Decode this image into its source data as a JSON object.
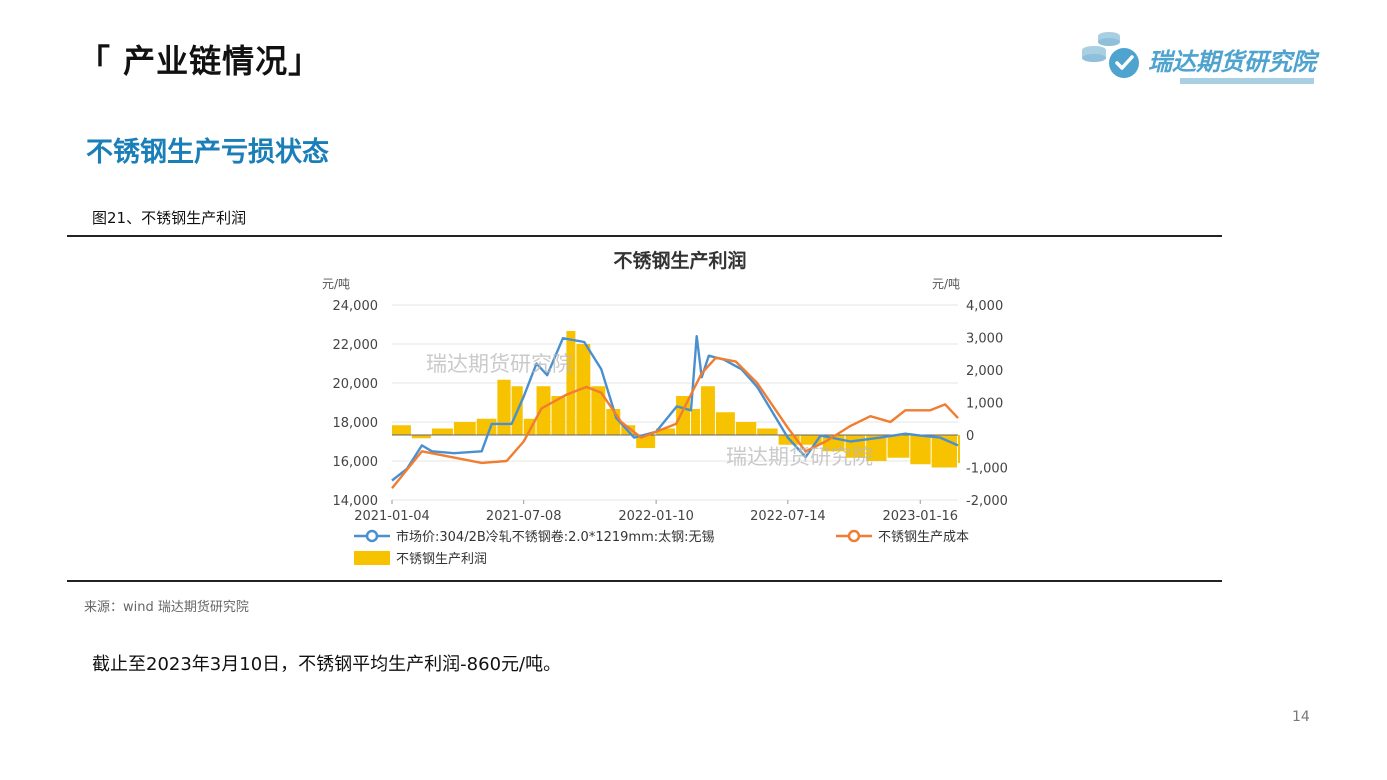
{
  "header": {
    "section_title": "「 产业链情况」"
  },
  "logo": {
    "text": "瑞达期货研究院",
    "color": "#4fa3cf",
    "bar_color": "#a9cfe3"
  },
  "subtitle": "不锈钢生产亏损状态",
  "subtitle_color": "#1a7fb8",
  "figure_caption": "图21、不锈钢生产利润",
  "source_note": "来源：wind   瑞达期货研究院",
  "summary": "截止至2023年3月10日，不锈钢平均生产利润-860元/吨。",
  "page_number": "14",
  "chart_data": {
    "type": "line",
    "title": "不锈钢生产利润",
    "y_left_label": "元/吨",
    "y_right_label": "元/吨",
    "y_left_range": [
      14000,
      24000
    ],
    "y_right_range": [
      -2000,
      4000
    ],
    "y_left_ticks": [
      "24,000",
      "22,000",
      "20,000",
      "18,000",
      "16,000",
      "14,000"
    ],
    "y_right_ticks": [
      "4,000",
      "3,000",
      "2,000",
      "1,000",
      "0",
      "-1,000",
      "-2,000"
    ],
    "x_ticks": [
      "2021-01-04",
      "2021-07-08",
      "2022-01-10",
      "2022-07-14",
      "2023-01-16"
    ],
    "watermark": "瑞达期货研究院",
    "grid": true,
    "legend_position": "bottom",
    "series": [
      {
        "name": "市场价:304/2B冷轧不锈钢卷:2.0*1219mm:太钢:无锡",
        "axis": "left",
        "kind": "line",
        "color": "#4a90d0",
        "points": [
          [
            "2021-01-04",
            15000
          ],
          [
            "2021-01-25",
            15600
          ],
          [
            "2021-02-15",
            16800
          ],
          [
            "2021-03-01",
            16500
          ],
          [
            "2021-04-01",
            16400
          ],
          [
            "2021-05-10",
            16500
          ],
          [
            "2021-05-24",
            17900
          ],
          [
            "2021-06-21",
            17900
          ],
          [
            "2021-07-08",
            19300
          ],
          [
            "2021-07-26",
            21000
          ],
          [
            "2021-08-10",
            20400
          ],
          [
            "2021-09-01",
            22300
          ],
          [
            "2021-10-01",
            22100
          ],
          [
            "2021-10-25",
            20700
          ],
          [
            "2021-11-15",
            18200
          ],
          [
            "2021-12-10",
            17200
          ],
          [
            "2022-01-10",
            17500
          ],
          [
            "2022-02-08",
            18800
          ],
          [
            "2022-02-28",
            18600
          ],
          [
            "2022-03-08",
            22400
          ],
          [
            "2022-03-15",
            20300
          ],
          [
            "2022-03-25",
            21400
          ],
          [
            "2022-04-15",
            21200
          ],
          [
            "2022-05-10",
            20700
          ],
          [
            "2022-06-01",
            19800
          ],
          [
            "2022-07-14",
            17200
          ],
          [
            "2022-08-08",
            16200
          ],
          [
            "2022-08-29",
            17300
          ],
          [
            "2022-10-10",
            17000
          ],
          [
            "2022-11-21",
            17200
          ],
          [
            "2022-12-26",
            17400
          ],
          [
            "2023-01-16",
            17300
          ],
          [
            "2023-02-13",
            17200
          ],
          [
            "2023-03-10",
            16800
          ]
        ]
      },
      {
        "name": "不锈钢生产成本",
        "axis": "left",
        "kind": "line",
        "color": "#f07d31",
        "points": [
          [
            "2021-01-04",
            14600
          ],
          [
            "2021-02-15",
            16500
          ],
          [
            "2021-03-15",
            16300
          ],
          [
            "2021-05-10",
            15900
          ],
          [
            "2021-06-14",
            16000
          ],
          [
            "2021-07-08",
            17000
          ],
          [
            "2021-08-02",
            18700
          ],
          [
            "2021-09-06",
            19400
          ],
          [
            "2021-10-04",
            19800
          ],
          [
            "2021-10-25",
            19500
          ],
          [
            "2021-11-22",
            18000
          ],
          [
            "2021-12-20",
            17200
          ],
          [
            "2022-01-10",
            17500
          ],
          [
            "2022-02-07",
            17900
          ],
          [
            "2022-03-15",
            20500
          ],
          [
            "2022-04-04",
            21300
          ],
          [
            "2022-05-02",
            21100
          ],
          [
            "2022-06-01",
            20000
          ],
          [
            "2022-07-14",
            17700
          ],
          [
            "2022-08-08",
            16500
          ],
          [
            "2022-09-05",
            17000
          ],
          [
            "2022-10-10",
            17800
          ],
          [
            "2022-11-07",
            18300
          ],
          [
            "2022-12-05",
            18000
          ],
          [
            "2022-12-26",
            18600
          ],
          [
            "2023-01-30",
            18600
          ],
          [
            "2023-02-20",
            18900
          ],
          [
            "2023-03-10",
            18200
          ]
        ]
      },
      {
        "name": "不锈钢生产利润",
        "axis": "right",
        "kind": "bar",
        "color": "#f7c300",
        "points": [
          [
            "2021-01-04",
            300
          ],
          [
            "2021-02-01",
            -100
          ],
          [
            "2021-03-01",
            200
          ],
          [
            "2021-04-01",
            400
          ],
          [
            "2021-05-03",
            500
          ],
          [
            "2021-06-01",
            1700
          ],
          [
            "2021-06-21",
            1500
          ],
          [
            "2021-07-08",
            500
          ],
          [
            "2021-07-26",
            1500
          ],
          [
            "2021-08-16",
            1200
          ],
          [
            "2021-09-06",
            3200
          ],
          [
            "2021-09-20",
            2800
          ],
          [
            "2021-10-11",
            1500
          ],
          [
            "2021-11-01",
            800
          ],
          [
            "2021-11-22",
            300
          ],
          [
            "2021-12-13",
            -400
          ],
          [
            "2022-01-10",
            200
          ],
          [
            "2022-02-07",
            1200
          ],
          [
            "2022-02-28",
            800
          ],
          [
            "2022-03-14",
            1500
          ],
          [
            "2022-04-04",
            700
          ],
          [
            "2022-05-02",
            400
          ],
          [
            "2022-06-01",
            200
          ],
          [
            "2022-07-01",
            -300
          ],
          [
            "2022-08-01",
            -300
          ],
          [
            "2022-09-01",
            -500
          ],
          [
            "2022-10-03",
            -700
          ],
          [
            "2022-11-01",
            -800
          ],
          [
            "2022-12-01",
            -700
          ],
          [
            "2023-01-02",
            -900
          ],
          [
            "2023-02-01",
            -1000
          ],
          [
            "2023-03-10",
            -860
          ]
        ]
      }
    ]
  }
}
